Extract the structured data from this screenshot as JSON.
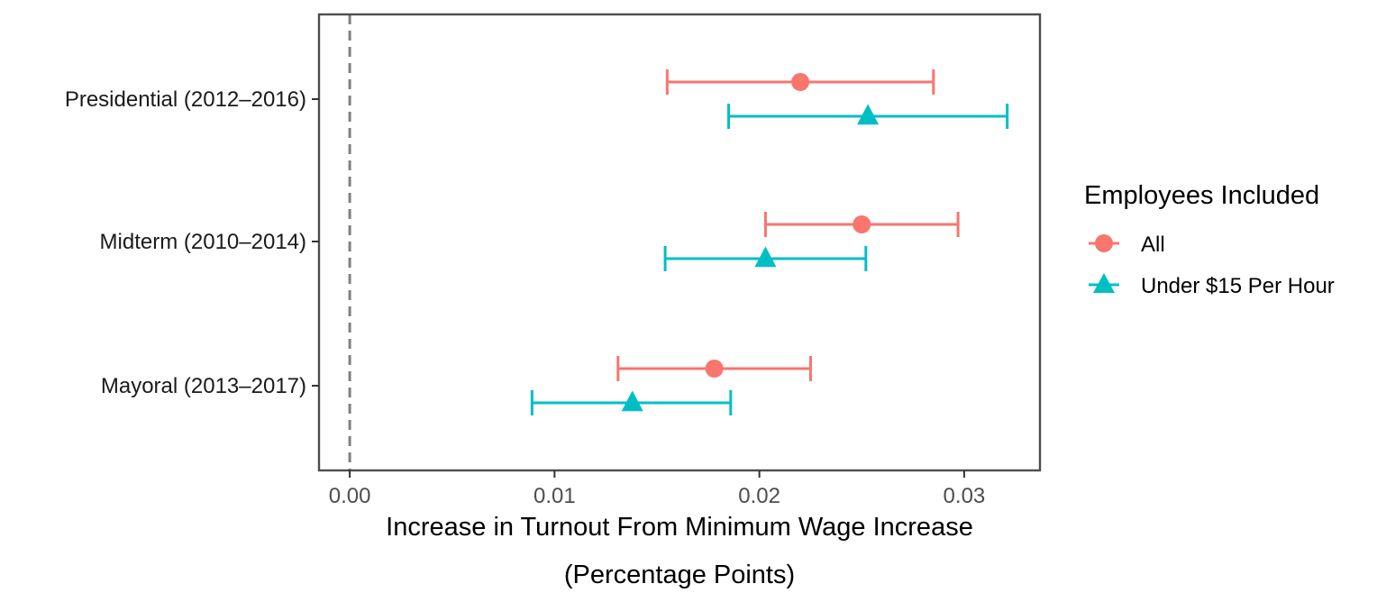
{
  "chart_data": {
    "type": "scatter",
    "subtype": "point-range",
    "title": "",
    "xlabel_line1": "Increase in Turnout From Minimum Wage Increase",
    "xlabel_line2": "(Percentage Points)",
    "ylabel": "",
    "xlim": [
      -0.0015,
      0.0337
    ],
    "x_ticks": [
      0.0,
      0.01,
      0.02,
      0.03
    ],
    "x_tick_labels": [
      "0.00",
      "0.01",
      "0.02",
      "0.03"
    ],
    "reference_line": {
      "x": 0,
      "style": "dashed",
      "color": "#808080"
    },
    "categories": [
      "Presidential (2012–2016)",
      "Midterm (2010–2014)",
      "Mayoral (2013–2017)"
    ],
    "grid": false,
    "legend": {
      "title": "Employees Included",
      "position": "right"
    },
    "series": [
      {
        "name": "All",
        "color": "#F8766D",
        "marker": "circle",
        "points": [
          {
            "category": "Presidential (2012–2016)",
            "estimate": 0.022,
            "lower": 0.0155,
            "upper": 0.0285
          },
          {
            "category": "Midterm (2010–2014)",
            "estimate": 0.025,
            "lower": 0.0203,
            "upper": 0.0297
          },
          {
            "category": "Mayoral (2013–2017)",
            "estimate": 0.0178,
            "lower": 0.0131,
            "upper": 0.0225
          }
        ]
      },
      {
        "name": "Under $15 Per Hour",
        "color": "#00BFC4",
        "marker": "triangle",
        "points": [
          {
            "category": "Presidential (2012–2016)",
            "estimate": 0.0253,
            "lower": 0.0185,
            "upper": 0.0321
          },
          {
            "category": "Midterm (2010–2014)",
            "estimate": 0.0203,
            "lower": 0.0154,
            "upper": 0.0252
          },
          {
            "category": "Mayoral (2013–2017)",
            "estimate": 0.0138,
            "lower": 0.0089,
            "upper": 0.0186
          }
        ]
      }
    ]
  }
}
